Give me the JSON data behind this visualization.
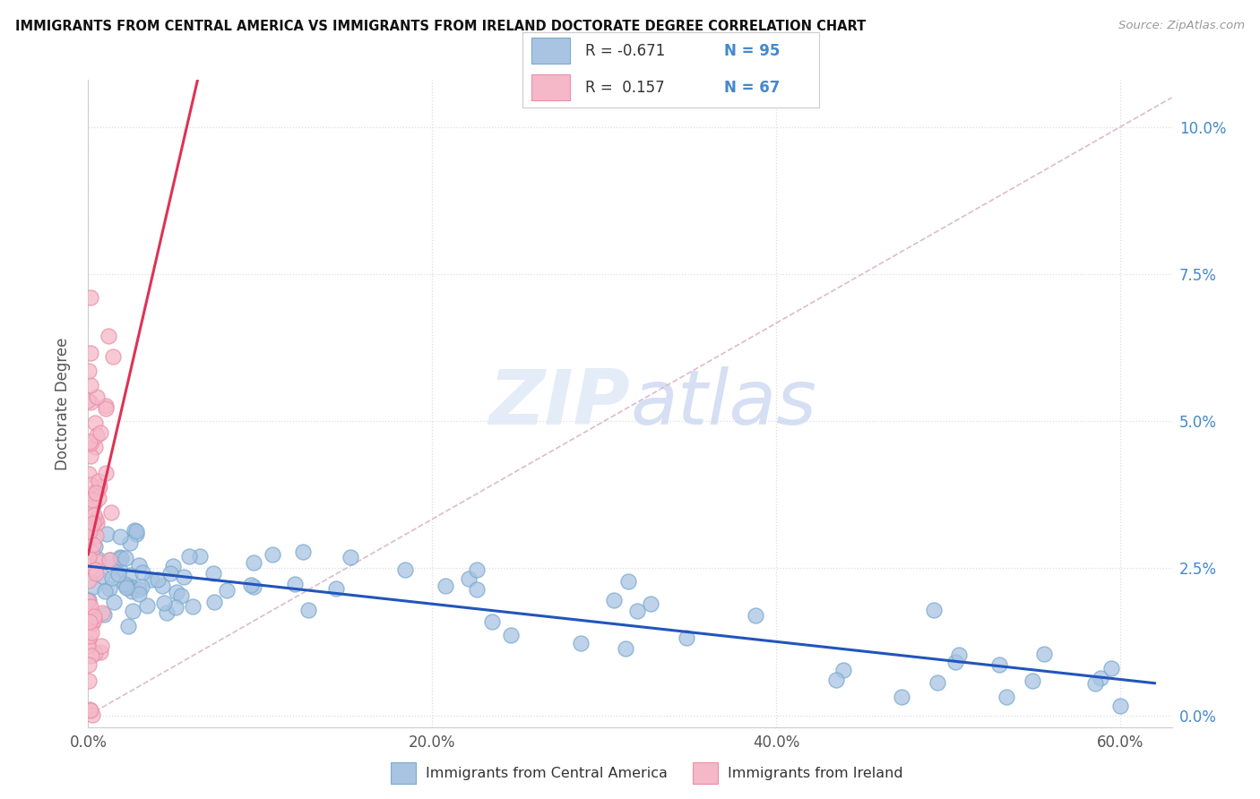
{
  "title": "IMMIGRANTS FROM CENTRAL AMERICA VS IMMIGRANTS FROM IRELAND DOCTORATE DEGREE CORRELATION CHART",
  "source": "Source: ZipAtlas.com",
  "ylabel_left": "Doctorate Degree",
  "xlim": [
    0.0,
    0.63
  ],
  "ylim": [
    -0.002,
    0.108
  ],
  "blue_R": -0.671,
  "blue_N": 95,
  "pink_R": 0.157,
  "pink_N": 67,
  "blue_color": "#a8c4e2",
  "blue_edge_color": "#7aaace",
  "pink_color": "#f5b8c8",
  "pink_edge_color": "#e890a8",
  "blue_line_color": "#2255bb",
  "pink_line_color": "#dd3355",
  "diag_line_color": "#ddbbcc",
  "legend_label_blue": "Immigrants from Central America",
  "legend_label_pink": "Immigrants from Ireland",
  "background_color": "#ffffff",
  "grid_color": "#d8dce8",
  "tick_color_right": "#4488cc",
  "x_ticks": [
    0.0,
    0.2,
    0.4,
    0.6
  ],
  "x_labels": [
    "0.0%",
    "20.0%",
    "40.0%",
    "60.0%"
  ],
  "y_ticks": [
    0.0,
    0.025,
    0.05,
    0.075,
    0.1
  ],
  "y_labels": [
    "0.0%",
    "2.5%",
    "5.0%",
    "7.5%",
    "10.0%"
  ]
}
